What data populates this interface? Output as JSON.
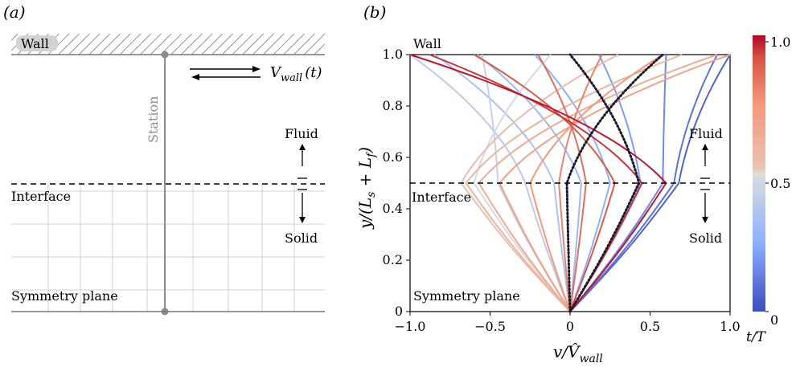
{
  "panel_a": {
    "label": "(a)",
    "wall_label": "Wall",
    "station_label": "Station",
    "interface_label": "Interface",
    "symmetry_label": "Symmetry plane",
    "fluid_label": "Fluid",
    "solid_label": "Solid",
    "velocity_label_main": "V",
    "velocity_label_sub": "wall",
    "velocity_label_arg": "(t)"
  },
  "panel_b": {
    "label": "(b)",
    "wall_label": "Wall",
    "interface_label": "Interface",
    "symmetry_label": "Symmetry plane",
    "fluid_label": "Fluid",
    "solid_label": "Solid",
    "xlabel": "v/V̂",
    "xlabel_sub": "wall",
    "ylabel": "y/(L",
    "ylabel_sub1": "s",
    "ylabel_mid": " + L",
    "ylabel_sub2": "f",
    "ylabel_end": ")",
    "colorbar_label": "t/T",
    "colorbar_ticks": [
      "0",
      "0.5",
      "1.0"
    ],
    "colors": {
      "low": "#3b4cc0",
      "mid": "#dddddd",
      "high": "#b40426"
    }
  },
  "chart_data": {
    "type": "line",
    "xlim": [
      -1.0,
      1.0
    ],
    "ylim": [
      0,
      1.0
    ],
    "xticks": [
      "−1.0",
      "−0.5",
      "0",
      "0.5",
      "1.0"
    ],
    "yticks": [
      "0",
      "0.2",
      "0.4",
      "0.6",
      "0.8",
      "1.0"
    ],
    "interface_y": 0.5,
    "series": [
      {
        "t": 0.06,
        "x_interface": 0.68,
        "x_wall": 1.0
      },
      {
        "t": 0.1,
        "x_interface": 0.65,
        "x_wall": 0.92
      },
      {
        "t": 0.15,
        "x_interface": 0.58,
        "x_wall": 0.6
      },
      {
        "t": 0.2,
        "x_interface": 0.44,
        "x_wall": 0.18
      },
      {
        "t": 0.25,
        "x_interface": 0.25,
        "x_wall": -0.22
      },
      {
        "t": 0.3,
        "x_interface": 0.07,
        "x_wall": -0.58
      },
      {
        "t": 0.35,
        "x_interface": -0.1,
        "x_wall": -0.85
      },
      {
        "t": 0.4,
        "x_interface": -0.28,
        "x_wall": -1.0
      },
      {
        "t": 0.43,
        "x_interface": -0.45,
        "x_wall": -0.55
      },
      {
        "t": 0.48,
        "x_interface": -0.6,
        "x_wall": -0.12
      },
      {
        "t": 0.55,
        "x_interface": -0.68,
        "x_wall": 0.3
      },
      {
        "t": 0.6,
        "x_interface": -0.65,
        "x_wall": 0.7
      },
      {
        "t": 0.65,
        "x_interface": -0.57,
        "x_wall": 0.92
      },
      {
        "t": 0.7,
        "x_interface": -0.44,
        "x_wall": 1.0
      },
      {
        "t": 0.75,
        "x_interface": -0.25,
        "x_wall": 0.58
      },
      {
        "t": 0.8,
        "x_interface": -0.07,
        "x_wall": 0.2
      },
      {
        "t": 0.85,
        "x_interface": 0.1,
        "x_wall": -0.2
      },
      {
        "t": 0.9,
        "x_interface": 0.28,
        "x_wall": -0.6
      },
      {
        "t": 0.95,
        "x_interface": 0.45,
        "x_wall": -0.88
      },
      {
        "t": 0.98,
        "x_interface": 0.6,
        "x_wall": -1.0
      }
    ],
    "dotted_series": [
      {
        "t": 0.0,
        "x_interface": 0.43,
        "x_wall": 0.0
      },
      {
        "t": 0.5,
        "x_interface": -0.02,
        "x_wall": 0.58
      }
    ]
  }
}
